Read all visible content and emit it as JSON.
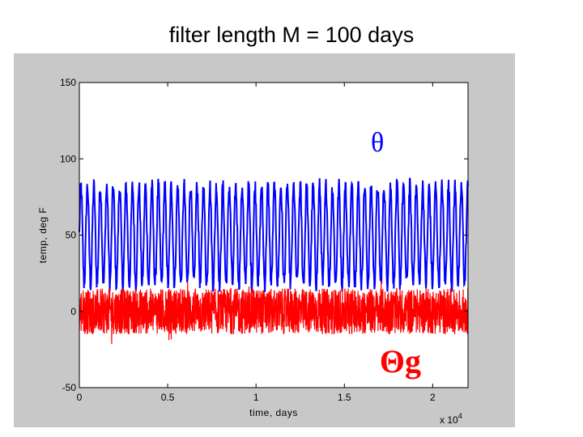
{
  "slide": {
    "title": "filter length M = 100 days"
  },
  "colors": {
    "panel": "#c8c8c8",
    "plot_bg": "#ffffff",
    "theta": "#0000ff",
    "theta_g": "#ff0000"
  },
  "chart_data": {
    "type": "line",
    "title": "",
    "xlabel": "time, days",
    "ylabel": "temp, deg F",
    "x_multiplier": "x 10",
    "x_multiplier_exponent": "4",
    "xlim": [
      0,
      22000
    ],
    "ylim": [
      -50,
      150
    ],
    "xticks": [
      0,
      5000,
      10000,
      15000,
      20000
    ],
    "xtick_labels": [
      "0",
      "0.5",
      "1",
      "1.5",
      "2"
    ],
    "yticks": [
      -50,
      0,
      50,
      100,
      150
    ],
    "ytick_labels": [
      "-50",
      "0",
      "50",
      "100",
      "150"
    ],
    "grid": false,
    "legend": "none",
    "series": [
      {
        "name": "θ",
        "color": "#0000ff",
        "x_start": 0,
        "x_end": 22000,
        "annual_period_days": 365,
        "mean": 50,
        "amplitude": 32,
        "noise": 6
      },
      {
        "name": "Θg",
        "color": "#ff0000",
        "x_start": 0,
        "x_end": 22000,
        "mean": 0,
        "noise_range": [
          -15,
          15
        ]
      }
    ],
    "annotations": [
      {
        "text": "θ",
        "x": 16500,
        "y": 105,
        "color": "#0000ff"
      },
      {
        "text": "Θg",
        "x": 17000,
        "y": -40,
        "color": "#ff0000"
      }
    ]
  }
}
